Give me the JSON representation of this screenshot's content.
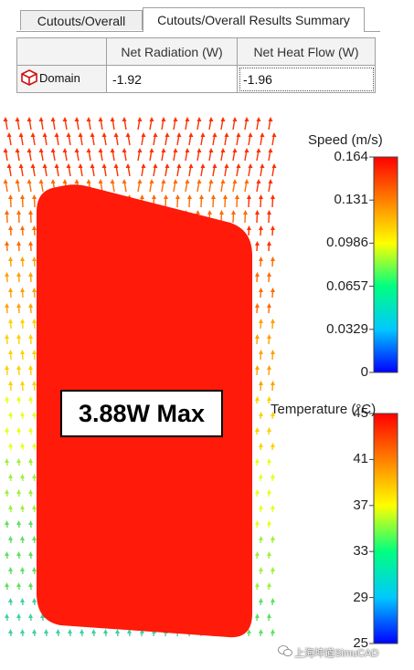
{
  "tabs": [
    {
      "label": "Cutouts/Overall"
    },
    {
      "label": "Cutouts/Overall Results Summary"
    }
  ],
  "summary_table": {
    "columns": [
      "Net Radiation (W)",
      "Net Heat Flow (W)"
    ],
    "rows": [
      {
        "name": "Domain",
        "icon": "red-cube-icon",
        "values": [
          "-1.92",
          "-1.96"
        ]
      }
    ]
  },
  "plot": {
    "callout": "3.88W Max",
    "speed_legend": {
      "title": "Speed (m/s)",
      "ticks": [
        "0.164",
        "0.131",
        "0.0986",
        "0.0657",
        "0.0329",
        "0"
      ],
      "colormap": [
        "#ff0000",
        "#ff8000",
        "#ffff00",
        "#00ff80",
        "#00c8ff",
        "#0000ff"
      ]
    },
    "temperature_legend": {
      "title": "Temperature (°C)",
      "ticks": [
        "45",
        "41",
        "37",
        "33",
        "29",
        "25"
      ],
      "colormap": [
        "#ff0000",
        "#ff8000",
        "#ffff00",
        "#00ff80",
        "#00c8ff",
        "#0000ff"
      ]
    },
    "component_color": "#ff1a0a"
  },
  "watermark": "上海坤道SimuCAD"
}
